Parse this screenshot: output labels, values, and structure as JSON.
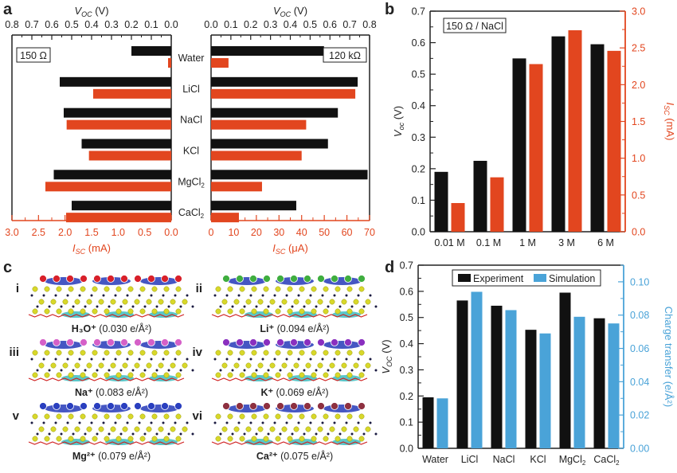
{
  "colors": {
    "black": "#111111",
    "red": "#e2461f",
    "blue": "#4aa3d8",
    "axis": "#222222"
  },
  "panel_labels": [
    "a",
    "b",
    "c",
    "d"
  ],
  "chart_data": [
    {
      "id": "a-left",
      "type": "bar",
      "orientation": "horizontal",
      "inset_label": "150 Ω",
      "categories": [
        "Water",
        "LiCl",
        "NaCl",
        "KCl",
        "MgCl₂",
        "CaCl₂"
      ],
      "series": [
        {
          "name": "Voc",
          "axis": "top",
          "color": "#111111",
          "values": [
            0.2,
            0.56,
            0.54,
            0.45,
            0.59,
            0.5
          ]
        },
        {
          "name": "Isc",
          "axis": "bottom",
          "color": "#e2461f",
          "values": [
            0.06,
            1.47,
            1.97,
            1.55,
            2.37,
            1.98
          ]
        }
      ],
      "top_axis": {
        "label_main": "V",
        "label_sub": "OC",
        "label_unit": " (V)",
        "range": [
          0.8,
          0.0
        ],
        "ticks": [
          "0.8",
          "0.7",
          "0.6",
          "0.5",
          "0.4",
          "0.3",
          "0.2",
          "0.1",
          "0.0"
        ]
      },
      "bottom_axis": {
        "label_main": "I",
        "label_sub": "SC",
        "label_unit": " (mA)",
        "range": [
          3.0,
          0.0
        ],
        "ticks": [
          "3.0",
          "2.5",
          "2.0",
          "1.5",
          "1.0",
          "0.5",
          "0.0"
        ]
      }
    },
    {
      "id": "a-right",
      "type": "bar",
      "orientation": "horizontal",
      "inset_label": "120 kΩ",
      "categories": [
        "Water",
        "LiCl",
        "NaCl",
        "KCl",
        "MgCl₂",
        "CaCl₂"
      ],
      "series": [
        {
          "name": "Voc",
          "axis": "top",
          "color": "#111111",
          "values": [
            0.57,
            0.74,
            0.64,
            0.59,
            0.79,
            0.43
          ]
        },
        {
          "name": "Isc",
          "axis": "bottom",
          "color": "#e2461f",
          "values": [
            7.7,
            63.7,
            42,
            40,
            22.5,
            12.3
          ]
        }
      ],
      "top_axis": {
        "label_main": "V",
        "label_sub": "OC",
        "label_unit": " (V)",
        "range": [
          0.0,
          0.8
        ],
        "ticks": [
          "0.0",
          "0.1",
          "0.2",
          "0.3",
          "0.4",
          "0.5",
          "0.6",
          "0.7",
          "0.8"
        ]
      },
      "bottom_axis": {
        "label_main": "I",
        "label_sub": "SC",
        "label_unit": " (μA)",
        "range": [
          0,
          70
        ],
        "ticks": [
          "0",
          "10",
          "20",
          "30",
          "40",
          "50",
          "60",
          "70"
        ]
      }
    },
    {
      "id": "b",
      "type": "bar",
      "inset_label": "150 Ω / NaCl",
      "categories": [
        "0.01 M",
        "0.1 M",
        "1 M",
        "3 M",
        "6 M"
      ],
      "series": [
        {
          "name": "Voc",
          "axis": "left",
          "color": "#111111",
          "values": [
            0.19,
            0.225,
            0.55,
            0.62,
            0.595
          ]
        },
        {
          "name": "Isc",
          "axis": "right",
          "color": "#e2461f",
          "values": [
            0.39,
            0.74,
            2.28,
            2.74,
            2.46
          ]
        }
      ],
      "left_axis": {
        "label_main": "V",
        "label_sub": "oc",
        "label_unit": " (V)",
        "range": [
          0,
          0.7
        ],
        "ticks": [
          "0.0",
          "0.1",
          "0.2",
          "0.3",
          "0.4",
          "0.5",
          "0.6",
          "0.7"
        ]
      },
      "right_axis": {
        "label_main": "I",
        "label_sub": "SC",
        "label_unit": " (mA)",
        "range": [
          0,
          3.0
        ],
        "ticks": [
          "0.0",
          "0.5",
          "1.0",
          "1.5",
          "2.0",
          "2.5",
          "3.0"
        ]
      }
    },
    {
      "id": "d",
      "type": "bar",
      "legend": {
        "placement": "top-center",
        "entries": [
          "Experiment",
          "Simulation"
        ]
      },
      "categories": [
        "Water",
        "LiCl",
        "NaCl",
        "KCl",
        "MgCl₂",
        "CaCl₂"
      ],
      "series": [
        {
          "name": "Experiment",
          "axis": "left",
          "color": "#111111",
          "values": [
            0.195,
            0.565,
            0.545,
            0.453,
            0.595,
            0.497
          ]
        },
        {
          "name": "Simulation",
          "axis": "right",
          "color": "#4aa3d8",
          "values": [
            0.03,
            0.094,
            0.083,
            0.069,
            0.079,
            0.075
          ]
        }
      ],
      "left_axis": {
        "label_main": "V",
        "label_sub": "OC",
        "label_unit": " (V)",
        "range": [
          0,
          0.7
        ],
        "ticks": [
          "0.0",
          "0.1",
          "0.2",
          "0.3",
          "0.4",
          "0.5",
          "0.6",
          "0.7"
        ]
      },
      "right_axis": {
        "label": "Charge transfer (e/Å²)",
        "range": [
          0,
          0.11
        ],
        "ticks": [
          "0.00",
          "0.02",
          "0.04",
          "0.06",
          "0.08",
          "0.10"
        ]
      }
    }
  ],
  "panel_c": {
    "items": [
      {
        "roman": "i",
        "ion": "H₃O⁺",
        "value": "(0.030 e/Å²)",
        "adsorbate_color": "#d8202a"
      },
      {
        "roman": "ii",
        "ion": "Li⁺",
        "value": "(0.094 e/Å²)",
        "adsorbate_color": "#3fae3f"
      },
      {
        "roman": "iii",
        "ion": "Na⁺",
        "value": "(0.083 e/Å²)",
        "adsorbate_color": "#d560c8"
      },
      {
        "roman": "iv",
        "ion": "K⁺",
        "value": "(0.069 e/Å²)",
        "adsorbate_color": "#8a2fbf"
      },
      {
        "roman": "v",
        "ion": "Mg²⁺",
        "value": "(0.079 e/Å²)",
        "adsorbate_color": "#2a3fbf"
      },
      {
        "roman": "vi",
        "ion": "Ca²⁺",
        "value": "(0.075 e/Å²)",
        "adsorbate_color": "#8e3040"
      }
    ]
  }
}
